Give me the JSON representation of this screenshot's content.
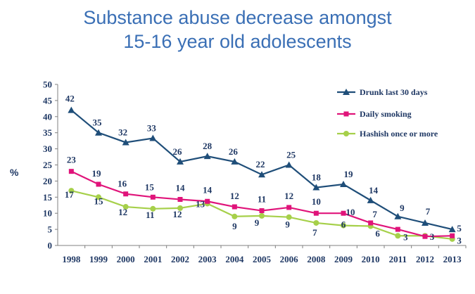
{
  "title_line1": "Substance abuse decrease amongst",
  "title_line2": "15-16 year old adolescents",
  "chart_data": {
    "type": "line",
    "title": "Substance abuse decrease amongst 15-16 year old adolescents",
    "xlabel": "",
    "ylabel": "%",
    "ylim": [
      0,
      50
    ],
    "yticks": [
      0,
      5,
      10,
      15,
      20,
      25,
      30,
      35,
      40,
      45,
      50
    ],
    "categories": [
      "1998",
      "1999",
      "2000",
      "2001",
      "2002",
      "2003",
      "2004",
      "2005",
      "2006",
      "2008",
      "2009",
      "2010",
      "2011",
      "2012",
      "2013"
    ],
    "legend_position": "top-right",
    "series": [
      {
        "name": "Drunk last 30 days",
        "color": "#1f4e79",
        "marker": "triangle",
        "values": [
          42,
          35,
          32,
          33.3,
          26,
          27.7,
          26,
          22,
          25,
          18,
          19,
          14,
          9,
          7,
          5
        ],
        "labels": [
          "42",
          "35",
          "32",
          "33",
          "26",
          "28",
          "26",
          "22",
          "25",
          "18",
          "19",
          "14",
          "9",
          "7",
          "5"
        ]
      },
      {
        "name": "Daily smoking",
        "color": "#e0147a",
        "marker": "square",
        "values": [
          23,
          19,
          16,
          15,
          14.3,
          13.7,
          12,
          10.8,
          11.8,
          10,
          10,
          7,
          5,
          2.8,
          3
        ],
        "labels": [
          "23",
          "19",
          "16",
          "15",
          "14",
          "14",
          "12",
          "11",
          "12",
          "10",
          "10",
          "7",
          "",
          "3",
          "3"
        ]
      },
      {
        "name": "Hashish once or more",
        "color": "#a6d04a",
        "marker": "circle",
        "values": [
          17,
          15,
          12,
          11.4,
          11.6,
          13,
          9,
          9.2,
          8.8,
          7,
          6.2,
          6,
          3,
          3,
          2
        ],
        "labels": [
          "17",
          "15",
          "12",
          "11",
          "12",
          "13",
          "9",
          "9",
          "9",
          "7",
          "6",
          "6",
          "3",
          "",
          ""
        ]
      }
    ]
  }
}
